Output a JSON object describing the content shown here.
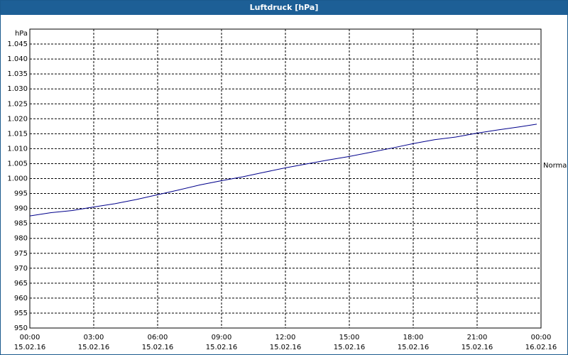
{
  "chart_data": {
    "type": "line",
    "title": "Luftdruck [hPa]",
    "y_label": "hPa",
    "x": [
      0,
      1,
      2,
      3,
      4,
      5,
      6,
      7,
      8,
      9,
      10,
      11,
      12,
      13,
      14,
      15,
      16,
      17,
      18,
      19,
      20,
      21,
      22,
      23,
      23.8
    ],
    "series": [
      {
        "name": "Normal",
        "color": "#00008b",
        "values": [
          987.5,
          988.6,
          989.3,
          990.5,
          991.6,
          993.0,
          994.6,
          996.2,
          997.9,
          999.3,
          1000.6,
          1002.1,
          1003.6,
          1004.9,
          1006.2,
          1007.4,
          1008.8,
          1010.2,
          1011.7,
          1013.0,
          1013.9,
          1015.2,
          1016.3,
          1017.3,
          1018.2
        ]
      }
    ],
    "xlim": [
      0,
      24
    ],
    "xticks": [
      {
        "value": 0,
        "label": "00:00\n15.02.16"
      },
      {
        "value": 3,
        "label": "03:00\n15.02.16"
      },
      {
        "value": 6,
        "label": "06:00\n15.02.16"
      },
      {
        "value": 9,
        "label": "09:00\n15.02.16"
      },
      {
        "value": 12,
        "label": "12:00\n15.02.16"
      },
      {
        "value": 15,
        "label": "15:00\n15.02.16"
      },
      {
        "value": 18,
        "label": "18:00\n15.02.16"
      },
      {
        "value": 21,
        "label": "21:00\n15.02.16"
      },
      {
        "value": 24,
        "label": "00:00\n16.02.16"
      }
    ],
    "ylim": [
      950,
      1050
    ],
    "yticks": [
      950,
      955,
      960,
      965,
      970,
      975,
      980,
      985,
      990,
      995,
      {
        "value": 1000,
        "label": "1.000"
      },
      {
        "value": 1005,
        "label": "1.005"
      },
      {
        "value": 1010,
        "label": "1.010"
      },
      {
        "value": 1015,
        "label": "1.015"
      },
      {
        "value": 1020,
        "label": "1.020"
      },
      {
        "value": 1025,
        "label": "1.025"
      },
      {
        "value": 1030,
        "label": "1.030"
      },
      {
        "value": 1035,
        "label": "1.035"
      },
      {
        "value": 1040,
        "label": "1.040"
      },
      {
        "value": 1045,
        "label": "1.045"
      }
    ],
    "grid": true
  }
}
